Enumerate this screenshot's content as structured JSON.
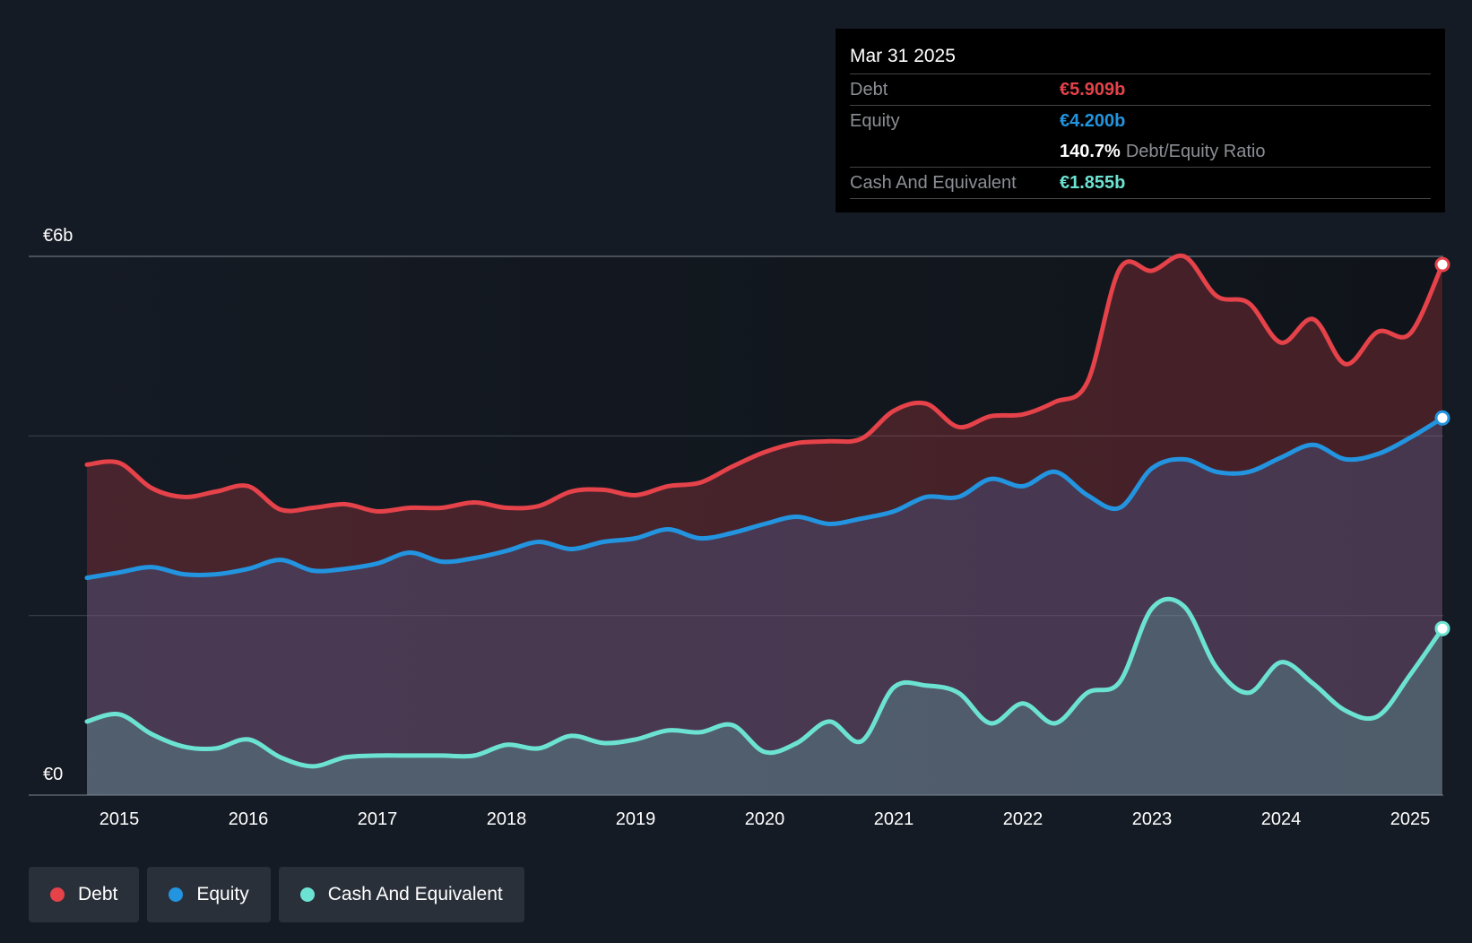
{
  "colors": {
    "debt": "#e5424a",
    "equity": "#2394df",
    "cash": "#6ce3d2",
    "background": "#151b24",
    "grid": "#3a404a"
  },
  "tooltip": {
    "date": "Mar 31 2025",
    "debt_label": "Debt",
    "debt_value": "€5.909b",
    "equity_label": "Equity",
    "equity_value": "€4.200b",
    "ratio_value": "140.7%",
    "ratio_text": "Debt/Equity Ratio",
    "cash_label": "Cash And Equivalent",
    "cash_value": "€1.855b"
  },
  "legend": {
    "debt": "Debt",
    "equity": "Equity",
    "cash": "Cash And Equivalent"
  },
  "chart_data": {
    "type": "area",
    "title": "",
    "xlabel": "",
    "ylabel": "",
    "ylim": [
      0,
      6
    ],
    "xlim": [
      2014.75,
      2025.25
    ],
    "y_tick_labels": [
      {
        "value": 6,
        "label": "€6b"
      },
      {
        "value": 0,
        "label": "€0"
      }
    ],
    "gridlines": [
      2,
      4,
      6
    ],
    "x_ticks": [
      2015,
      2016,
      2017,
      2018,
      2019,
      2020,
      2021,
      2022,
      2023,
      2024,
      2025
    ],
    "x_tick_labels": [
      "2015",
      "2016",
      "2017",
      "2018",
      "2019",
      "2020",
      "2021",
      "2022",
      "2023",
      "2024",
      "2025"
    ],
    "series": [
      {
        "name": "Debt",
        "x": [
          2014.75,
          2015.0,
          2015.25,
          2015.5,
          2015.75,
          2016.0,
          2016.25,
          2016.5,
          2016.75,
          2017.0,
          2017.25,
          2017.5,
          2017.75,
          2018.0,
          2018.25,
          2018.5,
          2018.75,
          2019.0,
          2019.25,
          2019.5,
          2019.75,
          2020.0,
          2020.25,
          2020.5,
          2020.75,
          2021.0,
          2021.25,
          2021.5,
          2021.75,
          2022.0,
          2022.25,
          2022.5,
          2022.75,
          2023.0,
          2023.25,
          2023.5,
          2023.75,
          2024.0,
          2024.25,
          2024.5,
          2024.75,
          2025.0,
          2025.25
        ],
        "values": [
          3.68,
          3.7,
          3.42,
          3.32,
          3.38,
          3.44,
          3.18,
          3.2,
          3.24,
          3.16,
          3.2,
          3.2,
          3.26,
          3.2,
          3.22,
          3.38,
          3.4,
          3.34,
          3.44,
          3.48,
          3.66,
          3.82,
          3.92,
          3.94,
          3.97,
          4.28,
          4.36,
          4.1,
          4.22,
          4.24,
          4.38,
          4.6,
          5.86,
          5.84,
          6.0,
          5.56,
          5.48,
          5.04,
          5.3,
          4.8,
          5.16,
          5.14,
          5.909
        ]
      },
      {
        "name": "Equity",
        "x": [
          2014.75,
          2015.0,
          2015.25,
          2015.5,
          2015.75,
          2016.0,
          2016.25,
          2016.5,
          2016.75,
          2017.0,
          2017.25,
          2017.5,
          2017.75,
          2018.0,
          2018.25,
          2018.5,
          2018.75,
          2019.0,
          2019.25,
          2019.5,
          2019.75,
          2020.0,
          2020.25,
          2020.5,
          2020.75,
          2021.0,
          2021.25,
          2021.5,
          2021.75,
          2022.0,
          2022.25,
          2022.5,
          2022.75,
          2023.0,
          2023.25,
          2023.5,
          2023.75,
          2024.0,
          2024.25,
          2024.5,
          2024.75,
          2025.0,
          2025.25
        ],
        "values": [
          2.42,
          2.48,
          2.54,
          2.46,
          2.46,
          2.52,
          2.62,
          2.5,
          2.52,
          2.58,
          2.7,
          2.6,
          2.64,
          2.72,
          2.82,
          2.74,
          2.82,
          2.86,
          2.96,
          2.86,
          2.92,
          3.02,
          3.1,
          3.02,
          3.08,
          3.16,
          3.32,
          3.32,
          3.52,
          3.44,
          3.6,
          3.34,
          3.2,
          3.64,
          3.74,
          3.6,
          3.6,
          3.76,
          3.9,
          3.74,
          3.8,
          3.98,
          4.2
        ]
      },
      {
        "name": "Cash And Equivalent",
        "x": [
          2014.75,
          2015.0,
          2015.25,
          2015.5,
          2015.75,
          2016.0,
          2016.25,
          2016.5,
          2016.75,
          2017.0,
          2017.25,
          2017.5,
          2017.75,
          2018.0,
          2018.25,
          2018.5,
          2018.75,
          2019.0,
          2019.25,
          2019.5,
          2019.75,
          2020.0,
          2020.25,
          2020.5,
          2020.75,
          2021.0,
          2021.25,
          2021.5,
          2021.75,
          2022.0,
          2022.25,
          2022.5,
          2022.75,
          2023.0,
          2023.25,
          2023.5,
          2023.75,
          2024.0,
          2024.25,
          2024.5,
          2024.75,
          2025.0,
          2025.25
        ],
        "values": [
          0.82,
          0.9,
          0.68,
          0.54,
          0.52,
          0.62,
          0.42,
          0.32,
          0.42,
          0.44,
          0.44,
          0.44,
          0.44,
          0.56,
          0.52,
          0.66,
          0.58,
          0.62,
          0.72,
          0.7,
          0.78,
          0.48,
          0.58,
          0.82,
          0.6,
          1.2,
          1.22,
          1.14,
          0.8,
          1.02,
          0.8,
          1.14,
          1.26,
          2.08,
          2.1,
          1.42,
          1.14,
          1.48,
          1.24,
          0.94,
          0.88,
          1.34,
          1.855
        ]
      }
    ]
  }
}
